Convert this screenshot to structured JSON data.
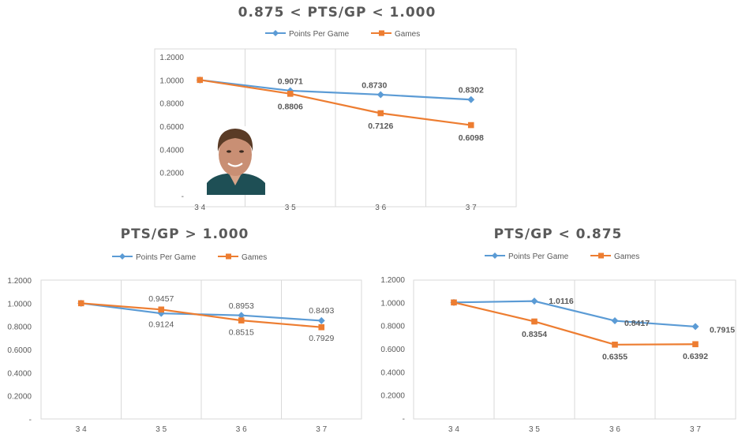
{
  "colors": {
    "points_per_game": "#5B9BD5",
    "games": "#ED7D31"
  },
  "chart_data": [
    {
      "type": "line",
      "title": "0.875 < PTS/GP < 1.000",
      "categories": [
        "3 4",
        "3 5",
        "3 6",
        "3 7"
      ],
      "y_ticks": [
        "1.2000",
        "1.0000",
        "0.8000",
        "0.6000",
        "0.4000",
        "0.2000",
        "-"
      ],
      "ylim": [
        0,
        1.2
      ],
      "grid": "vertical",
      "legend": "top",
      "image": "player-photo",
      "series": [
        {
          "name": "Points Per Game",
          "values": [
            1.0,
            0.9071,
            0.873,
            0.8302
          ],
          "labels": [
            "",
            "0.9071",
            "0.8730",
            "0.8302"
          ]
        },
        {
          "name": "Games",
          "values": [
            1.0,
            0.8806,
            0.7126,
            0.6098
          ],
          "labels": [
            "",
            "0.8806",
            "0.7126",
            "0.6098"
          ]
        }
      ]
    },
    {
      "type": "line",
      "title": "PTS/GP > 1.000",
      "categories": [
        "3 4",
        "3 5",
        "3 6",
        "3 7"
      ],
      "y_ticks": [
        "1.2000",
        "1.0000",
        "0.8000",
        "0.6000",
        "0.4000",
        "0.2000",
        "-"
      ],
      "ylim": [
        0,
        1.2
      ],
      "grid": "vertical",
      "legend": "top",
      "series": [
        {
          "name": "Points Per Game",
          "values": [
            1.0,
            0.9124,
            0.8953,
            0.8493
          ],
          "labels": [
            "",
            "0.9124",
            "0.8953",
            "0.8493"
          ]
        },
        {
          "name": "Games",
          "values": [
            1.0,
            0.9457,
            0.8515,
            0.7929
          ],
          "labels": [
            "",
            "0.9457",
            "0.8515",
            "0.7929"
          ]
        }
      ]
    },
    {
      "type": "line",
      "title": "PTS/GP < 0.875",
      "categories": [
        "3 4",
        "3 5",
        "3 6",
        "3 7"
      ],
      "y_ticks": [
        "1.2000",
        "1.0000",
        "0.8000",
        "0.6000",
        "0.4000",
        "0.2000",
        "-"
      ],
      "ylim": [
        0,
        1.2
      ],
      "grid": "vertical",
      "legend": "top",
      "series": [
        {
          "name": "Points Per Game",
          "values": [
            1.0,
            1.0116,
            0.8417,
            0.7915
          ],
          "labels": [
            "",
            "1.0116",
            "0.8417",
            "0.7915"
          ]
        },
        {
          "name": "Games",
          "values": [
            1.0,
            0.8354,
            0.6355,
            0.6392
          ],
          "labels": [
            "",
            "0.8354",
            "0.6355",
            "0.6392"
          ]
        }
      ]
    }
  ]
}
